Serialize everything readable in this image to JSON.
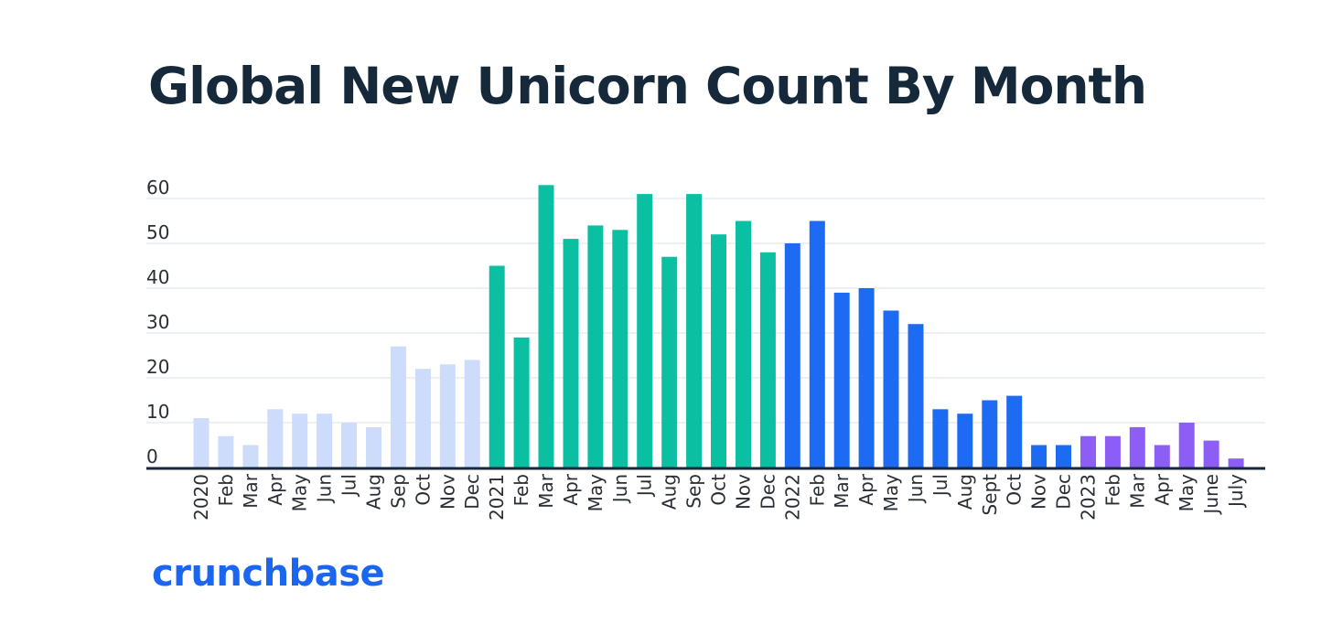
{
  "chart_data": {
    "type": "bar",
    "title": "Global New Unicorn Count By Month",
    "xlabel": "",
    "ylabel": "",
    "ylim": [
      0,
      60
    ],
    "yticks": [
      0,
      10,
      20,
      30,
      40,
      50,
      60
    ],
    "grid": true,
    "legend": "none",
    "categories": [
      "2020",
      "Feb",
      "Mar",
      "Apr",
      "May",
      "Jun",
      "Jul",
      "Aug",
      "Sep",
      "Oct",
      "Nov",
      "Dec",
      "2021",
      "Feb",
      "Mar",
      "Apr",
      "May",
      "Jun",
      "Jul",
      "Aug",
      "Sep",
      "Oct",
      "Nov",
      "Dec",
      "2022",
      "Feb",
      "Mar",
      "Apr",
      "May",
      "Jun",
      "Jul",
      "Aug",
      "Sept",
      "Oct",
      "Nov",
      "Dec",
      "2023",
      "Feb",
      "Mar",
      "Apr",
      "May",
      "June",
      "July"
    ],
    "values": [
      11,
      7,
      5,
      13,
      12,
      12,
      10,
      9,
      27,
      22,
      23,
      24,
      45,
      29,
      63,
      51,
      54,
      53,
      61,
      47,
      61,
      52,
      55,
      48,
      50,
      55,
      39,
      40,
      35,
      32,
      13,
      12,
      15,
      16,
      5,
      5,
      7,
      7,
      9,
      5,
      10,
      6,
      2
    ],
    "year_groups": [
      {
        "year": "2020",
        "count": 12,
        "color": "#ccdcfa"
      },
      {
        "year": "2021",
        "count": 12,
        "color": "#0bc0a2"
      },
      {
        "year": "2022",
        "count": 12,
        "color": "#1e6bf3"
      },
      {
        "year": "2023",
        "count": 7,
        "color": "#8c5ef6"
      }
    ]
  },
  "brand": {
    "logo_text": "crunchbase",
    "color": "#1a66f0"
  },
  "colors": {
    "title": "#15293b",
    "axis_text": "#2a2f36",
    "grid": "#dde3ea",
    "baseline": "#15293b"
  }
}
